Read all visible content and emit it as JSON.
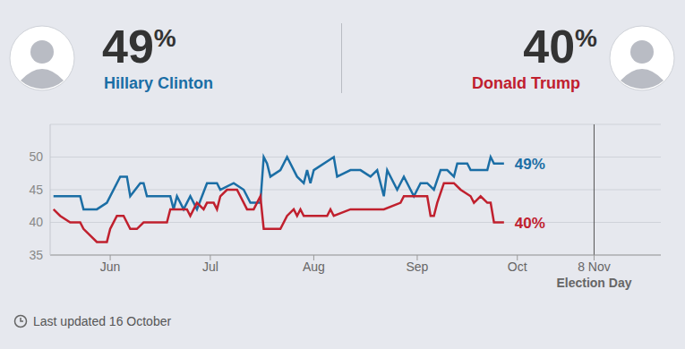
{
  "chart_data": {
    "type": "line",
    "footer": "Last updated 16 October",
    "xlim": [
      150,
      333
    ],
    "xticks": [
      {
        "value": 168,
        "label": "Jun"
      },
      {
        "value": 198,
        "label": "Jul"
      },
      {
        "value": 229,
        "label": "Aug"
      },
      {
        "value": 260,
        "label": "Sep"
      },
      {
        "value": 290,
        "label": "Oct"
      },
      {
        "value": 313,
        "label": "8 Nov"
      }
    ],
    "ylim": [
      35,
      55
    ],
    "yticks": [
      35,
      40,
      45,
      50
    ],
    "grid": true,
    "annotations": [
      {
        "x": 313,
        "label": "Election Day"
      }
    ],
    "series": [
      {
        "name": "Hillary Clinton",
        "color": "#1b6ea5",
        "end_label": "49%",
        "x": [
          151,
          159,
          160,
          164,
          167,
          171,
          173,
          174,
          177,
          178,
          179,
          186,
          187,
          188,
          190,
          192,
          194,
          197,
          200,
          201,
          205,
          208,
          210,
          213,
          214,
          215,
          216,
          219,
          221,
          224,
          226,
          227,
          228,
          229,
          235,
          236,
          240,
          243,
          246,
          248,
          250,
          251,
          254,
          256,
          258,
          259,
          261,
          263,
          265,
          267,
          269,
          271,
          272,
          275,
          276,
          281,
          282,
          283,
          286
        ],
        "values": [
          44,
          44,
          42,
          42,
          43,
          47,
          47,
          44,
          46,
          46,
          44,
          44,
          42,
          44,
          42,
          44,
          42,
          46,
          46,
          45,
          46,
          45,
          43,
          43,
          50,
          49,
          47,
          48,
          50,
          47,
          46,
          48,
          46,
          48,
          50,
          47,
          48,
          48,
          47,
          48,
          44,
          48,
          45,
          47,
          45,
          44,
          46,
          46,
          45,
          48,
          48,
          47,
          49,
          49,
          48,
          48,
          50,
          49,
          49
        ]
      },
      {
        "name": "Donald Trump",
        "color": "#c0202e",
        "end_label": "40%",
        "x": [
          151,
          153,
          156,
          159,
          160,
          162,
          164,
          167,
          168,
          170,
          172,
          174,
          176,
          178,
          185,
          186,
          191,
          192,
          193,
          194,
          196,
          197,
          199,
          200,
          201,
          203,
          206,
          207,
          209,
          211,
          213,
          214,
          219,
          221,
          223,
          224,
          225,
          226,
          233,
          234,
          235,
          240,
          250,
          255,
          256,
          261,
          263,
          264,
          265,
          266,
          268,
          271,
          273,
          276,
          277,
          279,
          281,
          282,
          283,
          286
        ],
        "values": [
          42,
          41,
          40,
          40,
          39,
          38,
          37,
          37,
          39,
          41,
          41,
          39,
          39,
          40,
          40,
          42,
          42,
          41,
          42,
          43,
          42,
          43,
          43,
          42,
          44,
          45,
          45,
          44,
          42,
          42,
          44,
          39,
          39,
          41,
          42,
          41,
          42,
          41,
          41,
          42,
          41,
          42,
          42,
          43,
          44,
          44,
          44,
          41,
          41,
          43,
          46,
          46,
          45,
          44,
          43,
          44,
          43,
          43,
          40,
          40
        ]
      }
    ]
  }
}
